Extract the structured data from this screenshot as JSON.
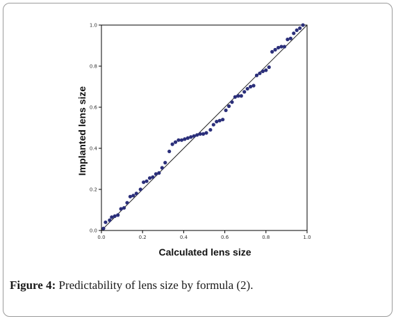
{
  "caption": {
    "label": "Figure 4:",
    "text": "Predictability of lens size by formula (2)."
  },
  "colors": {
    "point": "#2b2f7a",
    "line": "#222222",
    "axis": "#000000"
  },
  "chart_data": {
    "type": "scatter",
    "xlabel": "Calculated lens size",
    "ylabel": "Implanted lens size",
    "xlim": [
      0.0,
      1.0
    ],
    "ylim": [
      0.0,
      1.0
    ],
    "xticks": [
      "0.0",
      "0.2",
      "0.4",
      "0.6",
      "0.8",
      "1.0"
    ],
    "yticks": [
      "0.0",
      "0.2",
      "0.4",
      "0.6",
      "0.8",
      "1.0"
    ],
    "grid": false,
    "reference_line": {
      "from": [
        0.0,
        0.0
      ],
      "to": [
        1.0,
        1.0
      ]
    },
    "points": [
      [
        0.01,
        0.01
      ],
      [
        0.02,
        0.04
      ],
      [
        0.04,
        0.05
      ],
      [
        0.05,
        0.065
      ],
      [
        0.065,
        0.07
      ],
      [
        0.08,
        0.075
      ],
      [
        0.095,
        0.105
      ],
      [
        0.11,
        0.11
      ],
      [
        0.125,
        0.135
      ],
      [
        0.14,
        0.165
      ],
      [
        0.155,
        0.17
      ],
      [
        0.17,
        0.18
      ],
      [
        0.19,
        0.2
      ],
      [
        0.205,
        0.235
      ],
      [
        0.22,
        0.24
      ],
      [
        0.235,
        0.255
      ],
      [
        0.25,
        0.26
      ],
      [
        0.265,
        0.275
      ],
      [
        0.28,
        0.28
      ],
      [
        0.295,
        0.305
      ],
      [
        0.31,
        0.33
      ],
      [
        0.33,
        0.385
      ],
      [
        0.345,
        0.42
      ],
      [
        0.36,
        0.43
      ],
      [
        0.375,
        0.44
      ],
      [
        0.39,
        0.44
      ],
      [
        0.405,
        0.445
      ],
      [
        0.42,
        0.45
      ],
      [
        0.435,
        0.455
      ],
      [
        0.45,
        0.46
      ],
      [
        0.465,
        0.465
      ],
      [
        0.48,
        0.47
      ],
      [
        0.495,
        0.47
      ],
      [
        0.51,
        0.475
      ],
      [
        0.53,
        0.49
      ],
      [
        0.545,
        0.515
      ],
      [
        0.56,
        0.53
      ],
      [
        0.575,
        0.535
      ],
      [
        0.59,
        0.54
      ],
      [
        0.605,
        0.585
      ],
      [
        0.62,
        0.605
      ],
      [
        0.635,
        0.625
      ],
      [
        0.65,
        0.65
      ],
      [
        0.665,
        0.655
      ],
      [
        0.68,
        0.655
      ],
      [
        0.695,
        0.675
      ],
      [
        0.71,
        0.69
      ],
      [
        0.725,
        0.7
      ],
      [
        0.74,
        0.705
      ],
      [
        0.755,
        0.755
      ],
      [
        0.77,
        0.765
      ],
      [
        0.785,
        0.775
      ],
      [
        0.8,
        0.78
      ],
      [
        0.815,
        0.795
      ],
      [
        0.83,
        0.87
      ],
      [
        0.845,
        0.88
      ],
      [
        0.86,
        0.89
      ],
      [
        0.875,
        0.895
      ],
      [
        0.89,
        0.895
      ],
      [
        0.905,
        0.93
      ],
      [
        0.92,
        0.935
      ],
      [
        0.935,
        0.96
      ],
      [
        0.95,
        0.975
      ],
      [
        0.965,
        0.985
      ],
      [
        0.98,
        1.0
      ]
    ]
  }
}
